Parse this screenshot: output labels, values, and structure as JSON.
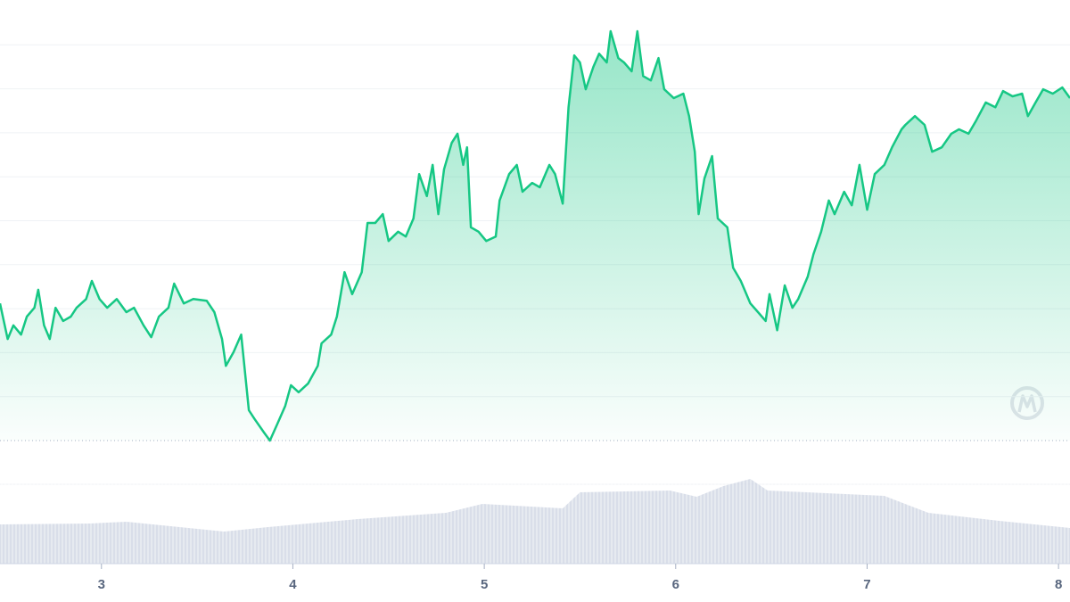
{
  "chart_data": {
    "type": "area",
    "xlim": [
      2.47,
      8.06
    ],
    "xticks": [
      3,
      4,
      5,
      6,
      7,
      8
    ],
    "ylim": [
      0,
      100
    ],
    "gridlines": [
      10,
      20,
      30,
      40,
      50,
      60,
      70,
      80,
      90
    ],
    "baseline": 0,
    "grid": true,
    "series": [
      {
        "color": "#16c784",
        "x": [
          2.47,
          2.51,
          2.54,
          2.58,
          2.61,
          2.65,
          2.67,
          2.7,
          2.73,
          2.76,
          2.8,
          2.84,
          2.87,
          2.92,
          2.95,
          2.99,
          3.03,
          3.08,
          3.13,
          3.17,
          3.22,
          3.26,
          3.3,
          3.35,
          3.38,
          3.43,
          3.48,
          3.55,
          3.59,
          3.63,
          3.65,
          3.69,
          3.73,
          3.77,
          3.8,
          3.85,
          3.88,
          3.92,
          3.96,
          3.99,
          4.03,
          4.08,
          4.13,
          4.15,
          4.2,
          4.23,
          4.27,
          4.31,
          4.36,
          4.39,
          4.43,
          4.47,
          4.5,
          4.55,
          4.59,
          4.63,
          4.66,
          4.7,
          4.73,
          4.76,
          4.79,
          4.83,
          4.86,
          4.89,
          4.91,
          4.93,
          4.97,
          5.01,
          5.06,
          5.08,
          5.13,
          5.17,
          5.2,
          5.25,
          5.29,
          5.34,
          5.37,
          5.41,
          5.44,
          5.47,
          5.5,
          5.53,
          5.57,
          5.6,
          5.64,
          5.66,
          5.7,
          5.73,
          5.77,
          5.8,
          5.83,
          5.87,
          5.91,
          5.94,
          5.99,
          6.04,
          6.07,
          6.1,
          6.12,
          6.15,
          6.19,
          6.22,
          6.27,
          6.3,
          6.34,
          6.39,
          6.43,
          6.47,
          6.49,
          6.53,
          6.57,
          6.61,
          6.64,
          6.69,
          6.72,
          6.76,
          6.8,
          6.83,
          6.88,
          6.92,
          6.96,
          7.0,
          7.04,
          7.09,
          7.13,
          7.18,
          7.2,
          7.25,
          7.3,
          7.34,
          7.39,
          7.44,
          7.48,
          7.53,
          7.57,
          7.62,
          7.67,
          7.71,
          7.76,
          7.81,
          7.84,
          7.88,
          7.92,
          7.97,
          8.02,
          8.06
        ],
        "values": [
          31.2,
          23.1,
          26.2,
          24.1,
          28.2,
          30.2,
          34.3,
          26.2,
          23.1,
          30.2,
          27.2,
          28.2,
          30.2,
          32.2,
          36.3,
          32.2,
          30.2,
          32.2,
          29.2,
          30.2,
          26.2,
          23.5,
          28.2,
          30.2,
          35.7,
          31.2,
          32.2,
          31.8,
          29.2,
          23.1,
          17.0,
          20.1,
          24.1,
          6.9,
          4.9,
          1.8,
          0,
          3.9,
          7.9,
          12.6,
          11.0,
          13.0,
          17.0,
          22.1,
          24.1,
          28.2,
          38.3,
          33.3,
          38.3,
          49.5,
          49.5,
          51.5,
          45.4,
          47.5,
          46.4,
          50.5,
          60.6,
          55.6,
          62.7,
          51.5,
          61.7,
          67.7,
          69.8,
          62.7,
          66.7,
          48.5,
          47.5,
          45.4,
          46.4,
          54.6,
          60.6,
          62.7,
          56.6,
          58.6,
          57.6,
          62.7,
          60.6,
          53.9,
          75.8,
          87.6,
          86.0,
          79.9,
          85.0,
          88.0,
          86.0,
          93.1,
          87.0,
          86.0,
          84.0,
          93.1,
          82.9,
          81.9,
          87.0,
          79.9,
          77.9,
          78.9,
          73.8,
          65.7,
          51.5,
          59.6,
          64.7,
          50.5,
          48.5,
          39.3,
          36.3,
          31.2,
          29.2,
          27.2,
          33.3,
          25.1,
          35.3,
          30.2,
          32.2,
          37.3,
          42.4,
          47.5,
          54.6,
          51.5,
          56.6,
          53.5,
          62.7,
          52.5,
          60.6,
          62.7,
          66.7,
          70.8,
          71.8,
          73.8,
          71.8,
          65.7,
          66.7,
          69.8,
          70.8,
          69.8,
          72.8,
          76.9,
          75.8,
          79.5,
          78.3,
          78.9,
          73.8,
          76.9,
          79.9,
          78.9,
          80.3,
          77.9
        ]
      }
    ],
    "volume": {
      "color": "#cfd6e4",
      "ylim": [
        0,
        100
      ],
      "x": [
        2.47,
        2.94,
        3.13,
        3.64,
        3.87,
        4.34,
        4.8,
        4.99,
        5.41,
        5.5,
        5.97,
        6.11,
        6.25,
        6.39,
        6.48,
        7.09,
        7.32,
        7.69,
        8.06
      ],
      "values": [
        44,
        45,
        47,
        36,
        41,
        50,
        57,
        67,
        62,
        80,
        82,
        75,
        87,
        95,
        82,
        76,
        57,
        48,
        40
      ]
    }
  }
}
